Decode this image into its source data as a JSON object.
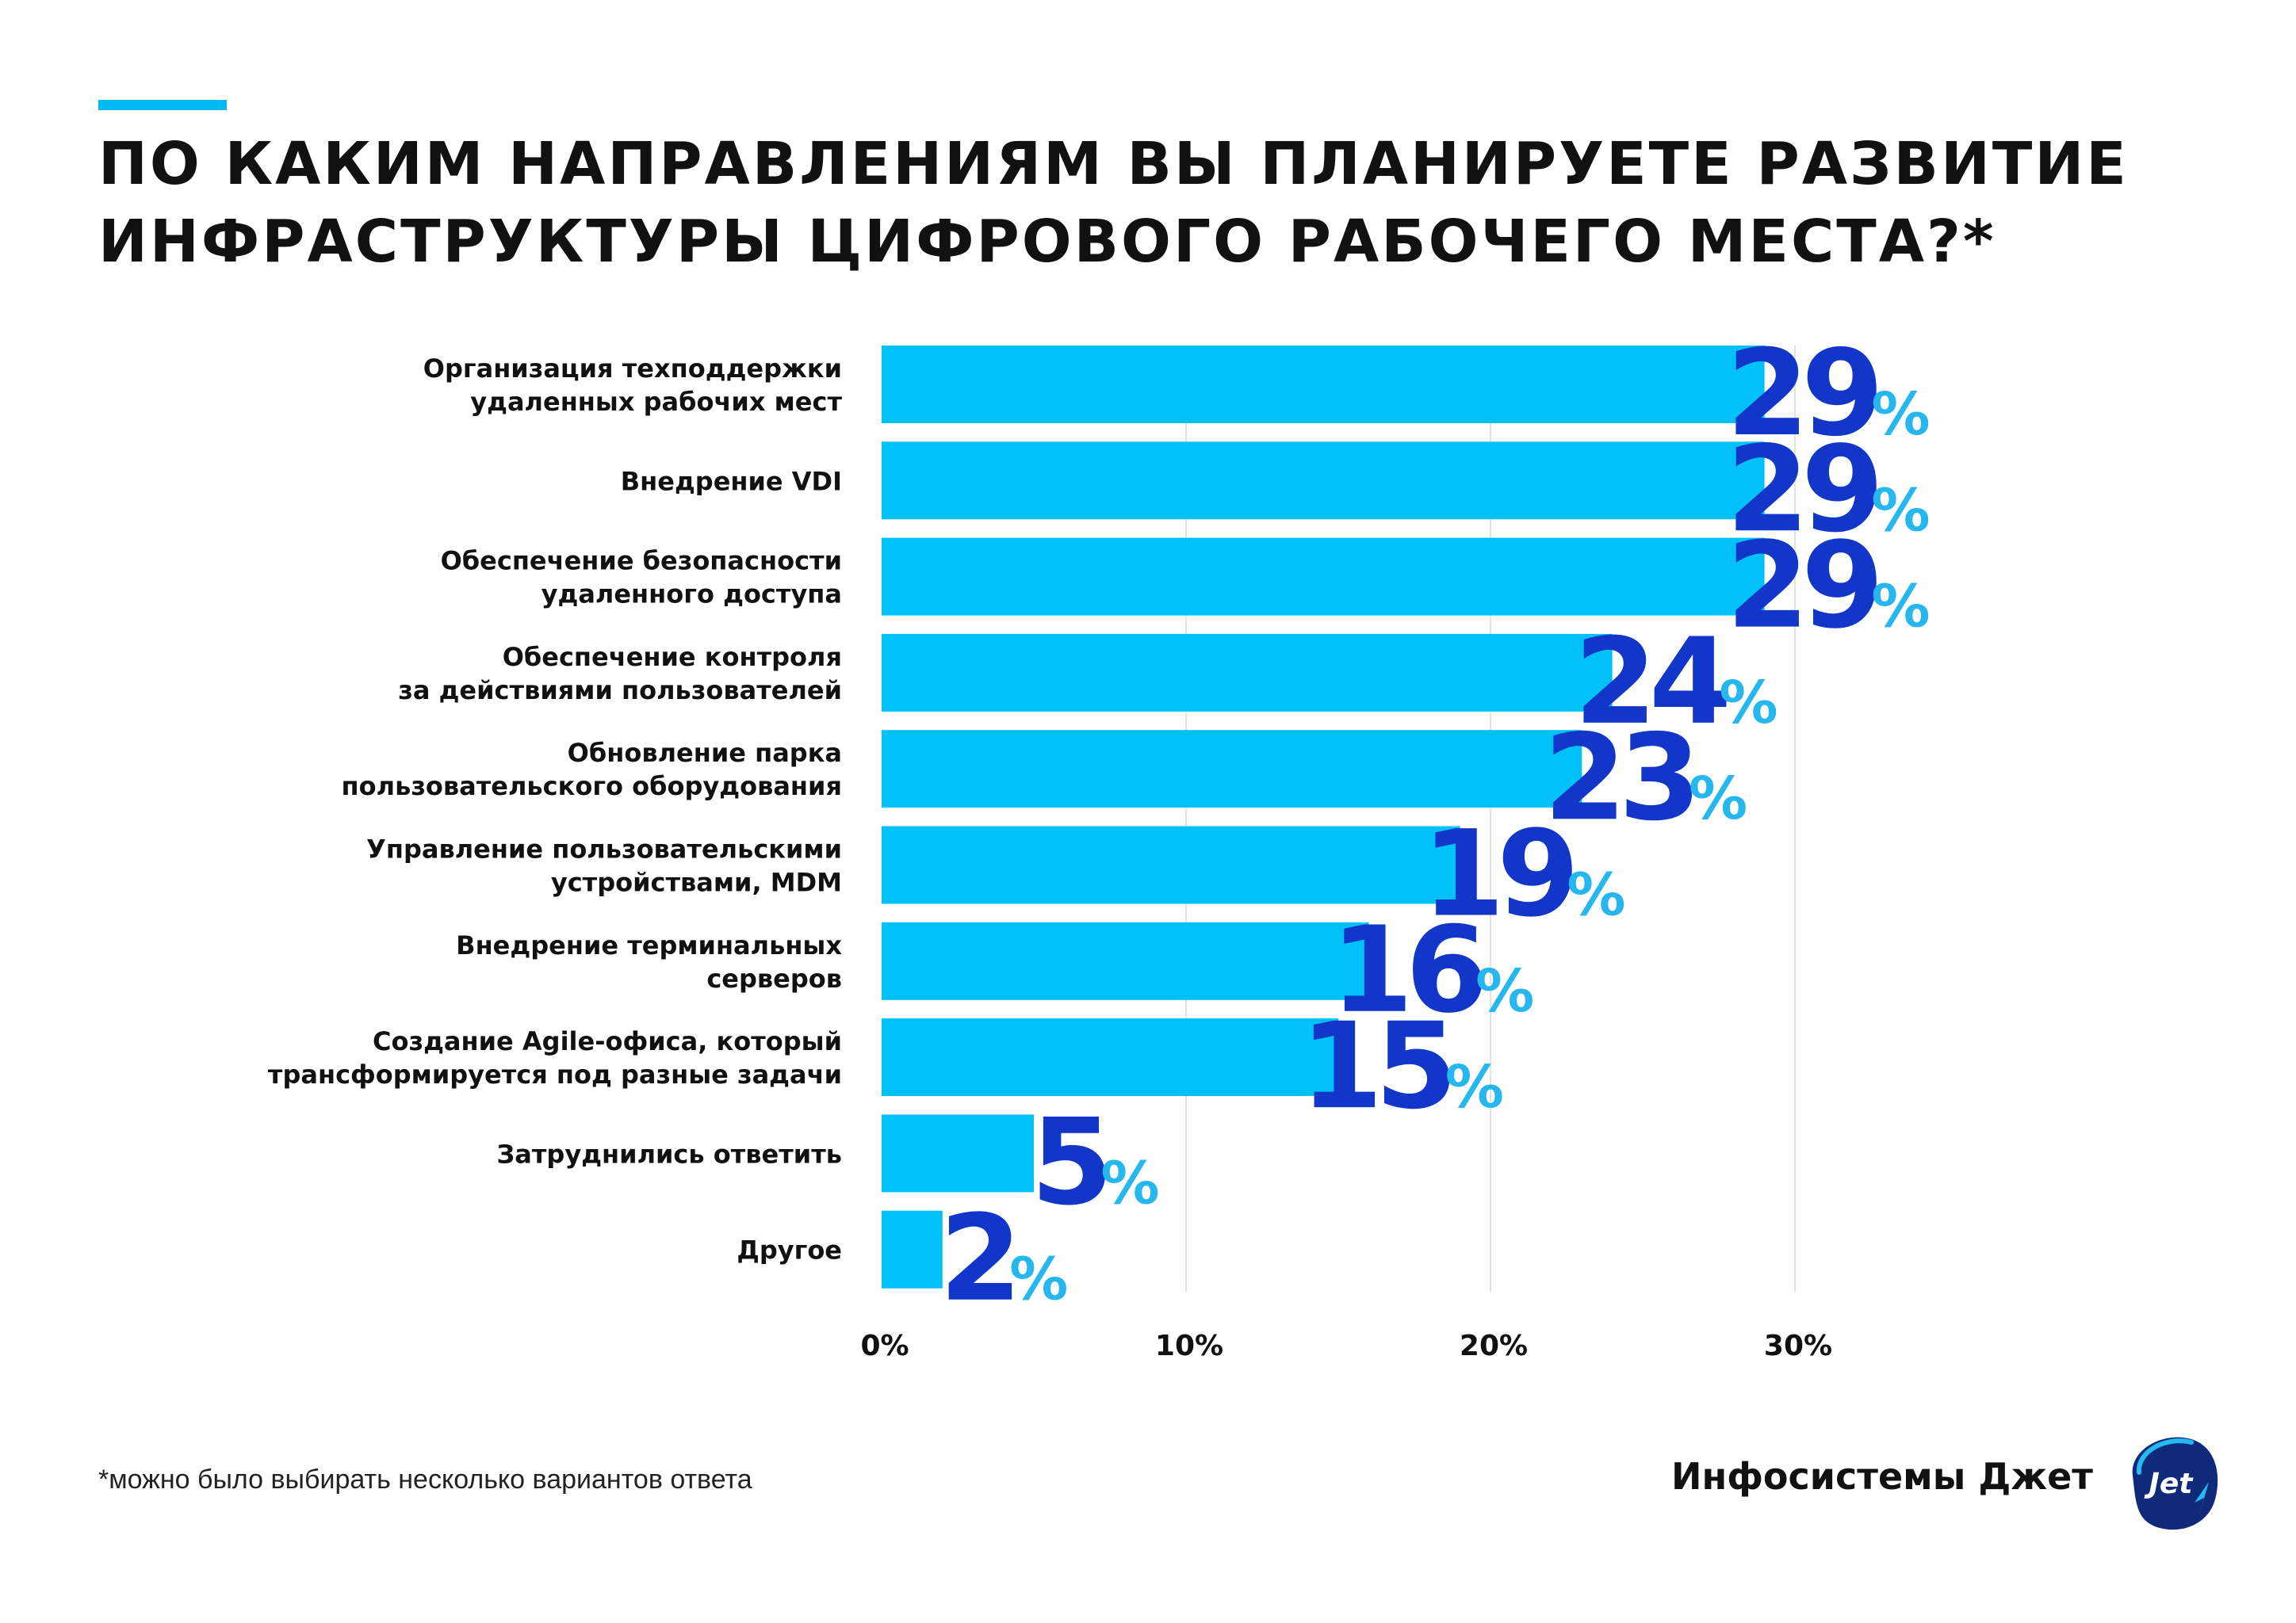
{
  "header": {
    "title_line1": "ПО КАКИМ НАПРАВЛЕНИЯМ ВЫ ПЛАНИРУЕТЕ РАЗВИТИЕ",
    "title_line2": "ИНФРАСТРУКТУРЫ ЦИФРОВОГО РАБОЧЕГО МЕСТА?*"
  },
  "chart_data": {
    "type": "bar",
    "orientation": "horizontal",
    "categories": [
      [
        "Организация техподдержки",
        "удаленных рабочих мест"
      ],
      [
        "Внедрение VDI"
      ],
      [
        "Обеспечение безопасности",
        "удаленного доступа"
      ],
      [
        "Обеспечение контроля",
        "за действиями пользователей"
      ],
      [
        "Обновление парка",
        "пользовательского оборудования"
      ],
      [
        "Управление пользовательскими",
        "устройствами, MDM"
      ],
      [
        "Внедрение терминальных",
        "серверов"
      ],
      [
        "Создание Agile-офиса, который",
        "трансформируется под разные задачи"
      ],
      [
        "Затруднились ответить"
      ],
      [
        "Другое"
      ]
    ],
    "values": [
      29,
      29,
      29,
      24,
      23,
      19,
      16,
      15,
      5,
      2
    ],
    "value_suffix": "%",
    "xlim": [
      0,
      30
    ],
    "xticks": [
      0,
      10,
      20,
      30
    ],
    "xtick_labels": [
      "0%",
      "10%",
      "20%",
      "30%"
    ],
    "grid": true,
    "colors": {
      "bar": "#00c0f8",
      "value_number": "#1136c8",
      "value_percent": "#26b7ee",
      "grid": "#e4e4e4"
    }
  },
  "footer": {
    "footnote": "*можно было выбирать несколько вариантов ответа",
    "brand": "Инфосистемы Джет",
    "logo_text": "Jet"
  }
}
